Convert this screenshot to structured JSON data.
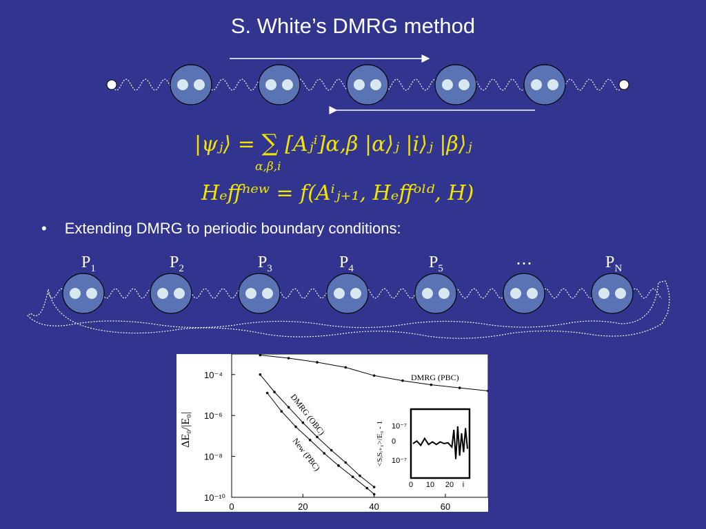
{
  "slide": {
    "title": "S. White’s DMRG method",
    "equation1": {
      "lhs": "|ψⱼ⟩ =",
      "sum": "∑",
      "sum_sub": "α,β,i",
      "rhs": "[Aⱼⁱ]α,β |α⟩ⱼ |i⟩ⱼ |β⟩ⱼ"
    },
    "equation2": "Hₑffⁿᵉʷ = f(Aⁱⱼ₊₁, Hₑffᵒˡᵈ, H)",
    "bullet_marker": "•",
    "bullet_text": "Extending DMRG to periodic boundary conditions:",
    "sites": [
      {
        "p": "P",
        "sub": "1"
      },
      {
        "p": "P",
        "sub": "2"
      },
      {
        "p": "P",
        "sub": "3"
      },
      {
        "p": "P",
        "sub": "4"
      },
      {
        "p": "P",
        "sub": "5"
      },
      {
        "p": "⋯",
        "sub": ""
      },
      {
        "p": "P",
        "sub": "N"
      }
    ],
    "colors": {
      "background": "#32358F",
      "equation": "#F2E600",
      "ellipse_fill": "#5A73B4",
      "dot_fill": "#D8E8F0"
    }
  },
  "chart_data": [
    {
      "type": "line",
      "ylabel": "ΔE₀/|E₀|",
      "x_ticks": [
        "0",
        "20",
        "40",
        "60"
      ],
      "y_ticks": [
        "10⁻⁴",
        "10⁻⁶",
        "10⁻⁸",
        "10⁻¹⁰"
      ],
      "xlim": [
        0,
        72
      ],
      "ylim_log10": [
        -10,
        -3.2
      ],
      "log_y": true,
      "series": [
        {
          "name": "DMRG (PBC)",
          "x": [
            8,
            16,
            24,
            32,
            40,
            48,
            56,
            64,
            72
          ],
          "y_log10": [
            -3.05,
            -3.2,
            -3.4,
            -3.65,
            -4.05,
            -4.3,
            -4.5,
            -4.65,
            -4.8
          ]
        },
        {
          "name": "DMRG (OBC)",
          "x": [
            8,
            12,
            16,
            20,
            24,
            28,
            32,
            36,
            40
          ],
          "y_log10": [
            -4.0,
            -4.85,
            -5.6,
            -6.35,
            -7.05,
            -7.7,
            -8.3,
            -8.95,
            -9.5
          ]
        },
        {
          "name": "New (PBC)",
          "x": [
            10,
            14,
            18,
            22,
            26,
            30,
            34,
            38,
            40
          ],
          "y_log10": [
            -4.9,
            -5.8,
            -6.55,
            -7.2,
            -7.85,
            -8.45,
            -9.0,
            -9.55,
            -9.85
          ]
        }
      ]
    },
    {
      "type": "line",
      "ylabel": "<SᵢSᵢ₊₁>/E₀ - 1",
      "x_ticks": [
        "0",
        "10",
        "20",
        "i"
      ],
      "y_ticks": [
        "10⁻⁷",
        "0",
        "10⁻⁷"
      ],
      "series": [
        {
          "name": "",
          "x": [
            0,
            2,
            4,
            6,
            8,
            10,
            12,
            14,
            16,
            18,
            20,
            21,
            22,
            23,
            24,
            25,
            26,
            27,
            28
          ],
          "y": [
            0.0,
            0.15,
            -0.1,
            0.3,
            -0.05,
            0.1,
            -0.05,
            0.1,
            0.0,
            0.05,
            -0.2,
            0.8,
            -0.9,
            1.0,
            -0.7,
            0.6,
            -0.5,
            0.9,
            -0.3
          ]
        }
      ]
    }
  ]
}
